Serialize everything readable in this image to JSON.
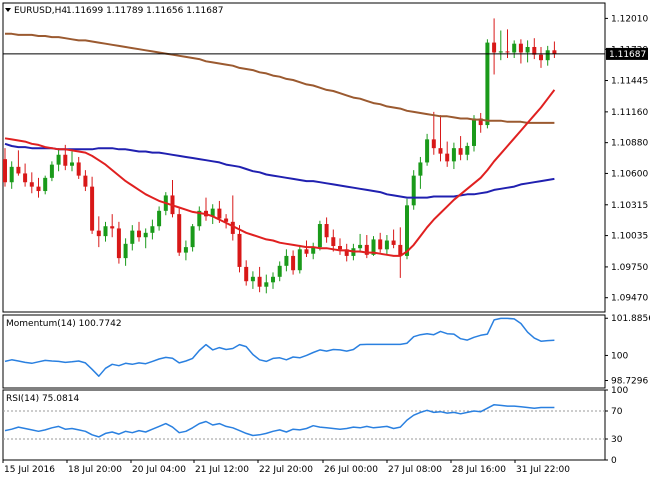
{
  "header": {
    "icon": "chevron-down-icon",
    "symbol_tf": "EURUSD,H4",
    "ohlc": "1.11699 1.11789 1.11656 1.11687"
  },
  "colors": {
    "bull": "#1a9a1a",
    "bear": "#d81818",
    "sma_red": "#e02020",
    "sma_blue": "#2020b0",
    "sma_brown": "#9b5a30",
    "indicator": "#2a80e0",
    "price_line": "#000000"
  },
  "chart_data": [
    {
      "type": "candlestick",
      "title": "EURUSD,H4",
      "ylim": [
        1.0934,
        1.1215
      ],
      "y_ticks": [
        "1.12010",
        "1.11729",
        "1.11445",
        "1.11160",
        "1.10880",
        "1.10600",
        "1.10315",
        "1.10035",
        "1.09750",
        "1.09470"
      ],
      "current_price": "1.11687",
      "x_labels": [
        "15 Jul 2016",
        "18 Jul 20:00",
        "20 Jul 04:00",
        "21 Jul 12:00",
        "22 Jul 20:00",
        "26 Jul 00:00",
        "27 Jul 08:00",
        "28 Jul 16:00",
        "31 Jul 22:00"
      ],
      "candles": [
        [
          1.1073,
          1.1083,
          1.1048,
          1.1052
        ],
        [
          1.1052,
          1.1071,
          1.1046,
          1.1066
        ],
        [
          1.1066,
          1.1081,
          1.1058,
          1.106
        ],
        [
          1.106,
          1.1069,
          1.1048,
          1.1052
        ],
        [
          1.1052,
          1.1061,
          1.1042,
          1.1048
        ],
        [
          1.1048,
          1.1056,
          1.1038,
          1.1044
        ],
        [
          1.1044,
          1.1058,
          1.1041,
          1.1056
        ],
        [
          1.1056,
          1.1071,
          1.1053,
          1.1068
        ],
        [
          1.1068,
          1.1083,
          1.1062,
          1.1077
        ],
        [
          1.1077,
          1.1086,
          1.1063,
          1.1067
        ],
        [
          1.1067,
          1.108,
          1.1062,
          1.107
        ],
        [
          1.107,
          1.1075,
          1.1055,
          1.1058
        ],
        [
          1.1058,
          1.1063,
          1.1044,
          1.1048
        ],
        [
          1.1048,
          1.1057,
          1.1005,
          1.1008
        ],
        [
          1.1008,
          1.1021,
          1.0993,
          1.1003
        ],
        [
          1.1003,
          1.1016,
          1.0998,
          1.1012
        ],
        [
          1.1012,
          1.1023,
          1.1002,
          1.101
        ],
        [
          1.101,
          1.1016,
          1.0978,
          1.0983
        ],
        [
          1.0983,
          1.1001,
          1.0976,
          1.0996
        ],
        [
          1.0996,
          1.1013,
          1.099,
          1.1008
        ],
        [
          1.1008,
          1.1016,
          1.0998,
          1.1002
        ],
        [
          1.1002,
          1.101,
          1.0992,
          1.1006
        ],
        [
          1.1006,
          1.1018,
          1.1,
          1.1012
        ],
        [
          1.1012,
          1.103,
          1.1008,
          1.1026
        ],
        [
          1.1026,
          1.1043,
          1.1022,
          1.104
        ],
        [
          1.104,
          1.1054,
          1.102,
          1.1023
        ],
        [
          1.1023,
          1.1028,
          1.0985,
          1.0988
        ],
        [
          1.0988,
          1.0999,
          1.0981,
          1.0993
        ],
        [
          1.0993,
          1.1014,
          1.0989,
          1.1012
        ],
        [
          1.1012,
          1.103,
          1.1008,
          1.1026
        ],
        [
          1.1026,
          1.1038,
          1.1017,
          1.1021
        ],
        [
          1.1021,
          1.1032,
          1.1014,
          1.1028
        ],
        [
          1.1028,
          1.1035,
          1.1015,
          1.1019
        ],
        [
          1.1019,
          1.1023,
          1.101,
          1.1016
        ],
        [
          1.1016,
          1.104,
          1.0999,
          1.1005
        ],
        [
          1.1005,
          1.1013,
          1.097,
          1.0975
        ],
        [
          1.0975,
          1.0981,
          1.0958,
          1.0962
        ],
        [
          1.0962,
          1.0971,
          1.0955,
          1.0966
        ],
        [
          1.0966,
          1.0975,
          1.0952,
          1.0957
        ],
        [
          1.0957,
          1.0968,
          1.0951,
          1.0961
        ],
        [
          1.0961,
          1.097,
          1.0955,
          1.0966
        ],
        [
          1.0966,
          1.098,
          1.0962,
          1.0976
        ],
        [
          1.0976,
          1.0991,
          1.0971,
          1.0985
        ],
        [
          1.0985,
          1.099,
          1.0968,
          1.0972
        ],
        [
          1.0972,
          1.0995,
          1.0969,
          1.0991
        ],
        [
          1.0991,
          1.0999,
          1.0984,
          1.0987
        ],
        [
          1.0987,
          1.0997,
          1.0982,
          1.0993
        ],
        [
          1.0993,
          1.1017,
          1.099,
          1.1014
        ],
        [
          1.1014,
          1.102,
          1.0997,
          1.1002
        ],
        [
          1.1002,
          1.1009,
          1.0989,
          1.0994
        ],
        [
          1.0994,
          1.1001,
          1.0986,
          1.0991
        ],
        [
          1.0991,
          1.0996,
          1.098,
          1.0985
        ],
        [
          1.0985,
          1.0996,
          1.0981,
          1.0992
        ],
        [
          1.0992,
          1.1005,
          1.0988,
          1.0995
        ],
        [
          1.0995,
          1.1004,
          1.0983,
          1.0986
        ],
        [
          1.0986,
          1.1003,
          1.0985,
          1.1
        ],
        [
          1.1,
          1.1006,
          1.0988,
          1.0991
        ],
        [
          1.0991,
          1.1004,
          1.0986,
          1.0999
        ],
        [
          1.0999,
          1.1009,
          1.0992,
          1.0995
        ],
        [
          1.0995,
          1.1011,
          1.0965,
          1.0985
        ],
        [
          1.0985,
          1.1037,
          1.0982,
          1.1031
        ],
        [
          1.1031,
          1.1063,
          1.1027,
          1.1058
        ],
        [
          1.1058,
          1.1075,
          1.1046,
          1.107
        ],
        [
          1.107,
          1.1096,
          1.1067,
          1.1091
        ],
        [
          1.1091,
          1.1116,
          1.1077,
          1.1083
        ],
        [
          1.1083,
          1.1113,
          1.1071,
          1.1078
        ],
        [
          1.1078,
          1.1089,
          1.1066,
          1.1071
        ],
        [
          1.1071,
          1.1088,
          1.1064,
          1.1083
        ],
        [
          1.1083,
          1.1094,
          1.1072,
          1.1077
        ],
        [
          1.1077,
          1.1088,
          1.1072,
          1.1085
        ],
        [
          1.1085,
          1.1113,
          1.108,
          1.111
        ],
        [
          1.111,
          1.1115,
          1.1097,
          1.1104
        ],
        [
          1.1104,
          1.1182,
          1.1101,
          1.1179
        ],
        [
          1.1179,
          1.1201,
          1.115,
          1.117
        ],
        [
          1.117,
          1.119,
          1.1163,
          1.1171
        ],
        [
          1.1171,
          1.1191,
          1.1165,
          1.117
        ],
        [
          1.117,
          1.1181,
          1.1165,
          1.1178
        ],
        [
          1.1178,
          1.1182,
          1.116,
          1.117
        ],
        [
          1.117,
          1.1181,
          1.1161,
          1.1175
        ],
        [
          1.1175,
          1.1183,
          1.1164,
          1.1168
        ],
        [
          1.1168,
          1.1175,
          1.1156,
          1.1163
        ],
        [
          1.1163,
          1.1176,
          1.1158,
          1.1172
        ],
        [
          1.1172,
          1.118,
          1.1165,
          1.1169
        ]
      ],
      "sma_red": [
        1.1092,
        1.1091,
        1.109,
        1.1089,
        1.1087,
        1.1086,
        1.1084,
        1.1083,
        1.1082,
        1.1082,
        1.1081,
        1.108,
        1.1079,
        1.1076,
        1.1072,
        1.1068,
        1.1063,
        1.1058,
        1.1053,
        1.1049,
        1.1045,
        1.1041,
        1.1038,
        1.1035,
        1.1033,
        1.1031,
        1.1029,
        1.1027,
        1.1025,
        1.1024,
        1.1023,
        1.1021,
        1.1018,
        1.1015,
        1.1012,
        1.1009,
        1.1006,
        1.1004,
        1.1002,
        1.1,
        1.0999,
        1.0997,
        1.0996,
        1.0995,
        1.0994,
        1.0993,
        1.0993,
        1.0992,
        1.0992,
        1.0991,
        1.099,
        1.099,
        1.0989,
        1.0989,
        1.0988,
        1.0988,
        1.0987,
        1.0986,
        1.0985,
        1.0985,
        1.0989,
        1.0995,
        1.1003,
        1.1011,
        1.1018,
        1.1024,
        1.103,
        1.1036,
        1.1041,
        1.1046,
        1.1051,
        1.1056,
        1.1063,
        1.1071,
        1.1078,
        1.1085,
        1.1092,
        1.1099,
        1.1106,
        1.1113,
        1.112,
        1.1128,
        1.1136
      ],
      "sma_blue": [
        1.1087,
        1.1085,
        1.1084,
        1.1084,
        1.1083,
        1.1083,
        1.1083,
        1.1083,
        1.1082,
        1.1082,
        1.1082,
        1.1082,
        1.1082,
        1.1082,
        1.1083,
        1.1083,
        1.1083,
        1.1082,
        1.1082,
        1.1081,
        1.108,
        1.108,
        1.1079,
        1.1079,
        1.1078,
        1.1077,
        1.1076,
        1.1075,
        1.1074,
        1.1073,
        1.1072,
        1.1071,
        1.107,
        1.1068,
        1.1067,
        1.1066,
        1.1064,
        1.1062,
        1.1061,
        1.1059,
        1.1058,
        1.1057,
        1.1056,
        1.1055,
        1.1054,
        1.1053,
        1.1053,
        1.1052,
        1.1051,
        1.105,
        1.1049,
        1.1048,
        1.1047,
        1.1046,
        1.1045,
        1.1044,
        1.1043,
        1.1041,
        1.104,
        1.1039,
        1.1038,
        1.1038,
        1.1038,
        1.1038,
        1.1039,
        1.1039,
        1.1039,
        1.1039,
        1.104,
        1.1041,
        1.1041,
        1.1042,
        1.1043,
        1.1045,
        1.1046,
        1.1047,
        1.1048,
        1.105,
        1.1051,
        1.1052,
        1.1053,
        1.1054,
        1.1055
      ],
      "sma_brown": [
        1.1187,
        1.1187,
        1.1186,
        1.1186,
        1.1186,
        1.1185,
        1.1185,
        1.1184,
        1.1184,
        1.1183,
        1.1182,
        1.1181,
        1.1181,
        1.118,
        1.1179,
        1.1178,
        1.1177,
        1.1176,
        1.1175,
        1.1174,
        1.1173,
        1.1172,
        1.1171,
        1.117,
        1.1169,
        1.1168,
        1.1167,
        1.1166,
        1.1165,
        1.1164,
        1.1162,
        1.1161,
        1.116,
        1.1159,
        1.1158,
        1.1156,
        1.1155,
        1.1154,
        1.1152,
        1.1151,
        1.1149,
        1.1148,
        1.1146,
        1.1145,
        1.1143,
        1.1141,
        1.114,
        1.1138,
        1.1136,
        1.1135,
        1.1133,
        1.1131,
        1.1129,
        1.1128,
        1.1126,
        1.1124,
        1.1123,
        1.1121,
        1.112,
        1.1119,
        1.1117,
        1.1116,
        1.1115,
        1.1114,
        1.1113,
        1.1112,
        1.1112,
        1.1111,
        1.111,
        1.111,
        1.1109,
        1.1109,
        1.1108,
        1.1108,
        1.1108,
        1.1107,
        1.1107,
        1.1107,
        1.1106,
        1.1106,
        1.1106,
        1.1106,
        1.1106
      ]
    },
    {
      "type": "line",
      "title": "Momentum(14) 100.7742",
      "ylim": [
        98.35,
        102.05
      ],
      "y_ticks": [
        "101.8856",
        "100",
        "98.7296"
      ],
      "values": [
        99.7,
        99.78,
        99.72,
        99.65,
        99.6,
        99.68,
        99.75,
        99.72,
        99.7,
        99.65,
        99.68,
        99.72,
        99.62,
        99.3,
        98.95,
        99.35,
        99.55,
        99.48,
        99.6,
        99.55,
        99.62,
        99.58,
        99.7,
        99.82,
        99.9,
        99.86,
        99.62,
        99.72,
        99.85,
        100.25,
        100.55,
        100.28,
        100.4,
        100.3,
        100.35,
        100.55,
        100.45,
        100.05,
        99.78,
        99.7,
        99.85,
        99.88,
        99.78,
        99.92,
        99.88,
        100.0,
        100.15,
        100.28,
        100.22,
        100.3,
        100.28,
        100.22,
        100.3,
        100.55,
        100.56,
        100.56,
        100.56,
        100.56,
        100.56,
        100.56,
        100.62,
        100.95,
        101.05,
        101.1,
        101.05,
        101.22,
        101.1,
        101.08,
        100.85,
        100.78,
        100.92,
        101.02,
        101.08,
        101.8,
        101.88,
        101.88,
        101.85,
        101.62,
        101.18,
        100.88,
        100.72,
        100.75,
        100.77
      ]
    },
    {
      "type": "line",
      "title": "RSI(14) 75.0814",
      "ylim": [
        0,
        100
      ],
      "y_ticks": [
        "100",
        "70",
        "30",
        "0"
      ],
      "values": [
        42,
        44,
        47,
        45,
        43,
        41,
        43,
        46,
        48,
        44,
        45,
        43,
        41,
        36,
        33,
        38,
        40,
        37,
        41,
        39,
        42,
        40,
        44,
        48,
        52,
        47,
        39,
        41,
        46,
        52,
        55,
        50,
        52,
        48,
        46,
        42,
        38,
        35,
        36,
        38,
        41,
        43,
        40,
        44,
        43,
        45,
        49,
        47,
        46,
        45,
        44,
        45,
        47,
        46,
        48,
        46,
        47,
        48,
        45,
        47,
        57,
        64,
        68,
        71,
        68,
        69,
        67,
        68,
        66,
        68,
        70,
        69,
        74,
        79,
        78,
        77,
        77,
        76,
        75,
        74,
        75,
        75,
        75
      ]
    }
  ]
}
